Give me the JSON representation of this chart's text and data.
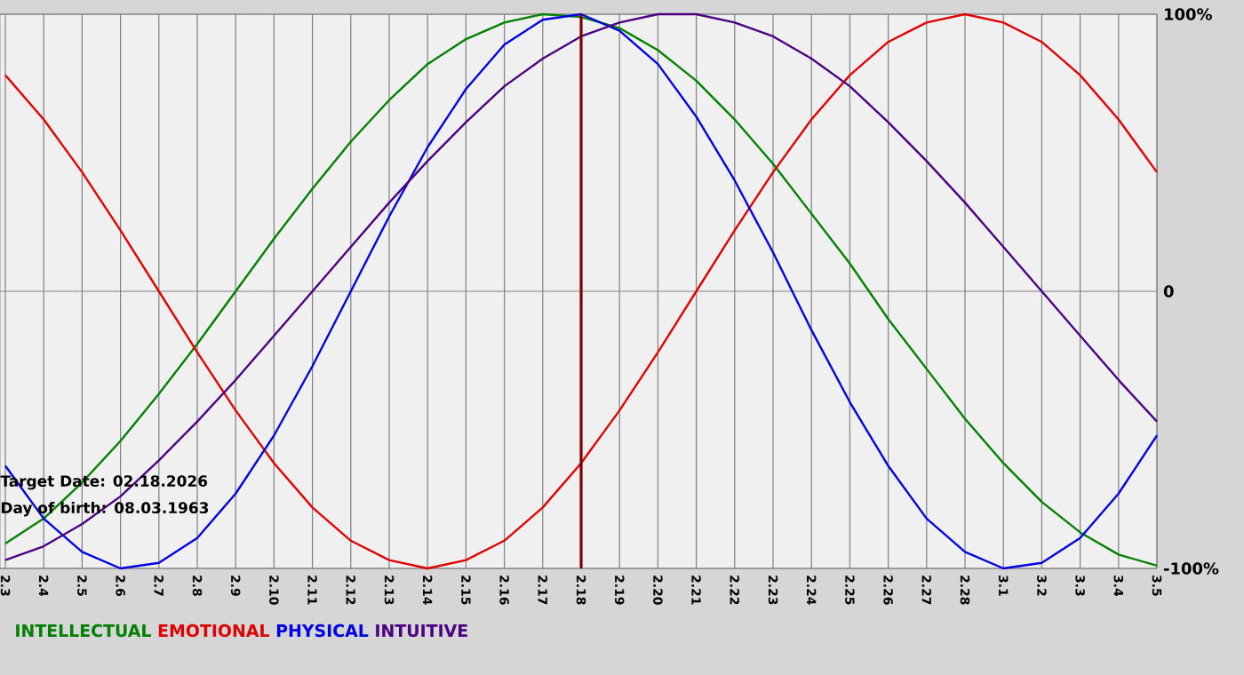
{
  "chart_data": {
    "type": "line",
    "categories": [
      "2.3",
      "2.4",
      "2.5",
      "2.6",
      "2.7",
      "2.8",
      "2.9",
      "2.10",
      "2.11",
      "2.12",
      "2.13",
      "2.14",
      "2.15",
      "2.16",
      "2.17",
      "2.18",
      "2.19",
      "2.20",
      "2.21",
      "2.22",
      "2.23",
      "2.24",
      "2.25",
      "2.26",
      "2.27",
      "2.28",
      "3.1",
      "3.2",
      "3.3",
      "3.4",
      "3.5"
    ],
    "series": [
      {
        "name": "INTELLECTUAL",
        "color": "#008000",
        "values": [
          -0.91,
          -0.82,
          -0.69,
          -0.54,
          -0.37,
          -0.19,
          0,
          0.19,
          0.37,
          0.54,
          0.69,
          0.82,
          0.91,
          0.97,
          1.0,
          0.99,
          0.95,
          0.87,
          0.76,
          0.62,
          0.46,
          0.28,
          0.1,
          -0.1,
          -0.28,
          -0.46,
          -0.62,
          -0.76,
          -0.87,
          -0.95,
          -0.99
        ]
      },
      {
        "name": "EMOTIONAL",
        "color": "#e00000",
        "values": [
          0.78,
          0.62,
          0.43,
          0.22,
          0,
          -0.22,
          -0.43,
          -0.62,
          -0.78,
          -0.9,
          -0.97,
          -1.0,
          -0.97,
          -0.9,
          -0.78,
          -0.62,
          -0.43,
          -0.22,
          0,
          0.22,
          0.43,
          0.62,
          0.78,
          0.9,
          0.97,
          1.0,
          0.97,
          0.9,
          0.78,
          0.62,
          0.43
        ]
      },
      {
        "name": "PHYSICAL",
        "color": "#0000e0",
        "values": [
          -0.63,
          -0.82,
          -0.94,
          -1.0,
          -0.98,
          -0.89,
          -0.73,
          -0.52,
          -0.27,
          0,
          0.27,
          0.52,
          0.73,
          0.89,
          0.98,
          1.0,
          0.94,
          0.82,
          0.63,
          0.4,
          0.14,
          -0.14,
          -0.4,
          -0.63,
          -0.82,
          -0.94,
          -1.0,
          -0.98,
          -0.89,
          -0.73,
          -0.52
        ]
      },
      {
        "name": "INTUITIVE",
        "color": "#4b0082",
        "values": [
          -0.97,
          -0.92,
          -0.84,
          -0.74,
          -0.61,
          -0.47,
          -0.32,
          -0.16,
          0,
          0.16,
          0.32,
          0.47,
          0.61,
          0.74,
          0.84,
          0.92,
          0.97,
          1.0,
          1.0,
          0.97,
          0.92,
          0.84,
          0.74,
          0.61,
          0.47,
          0.32,
          0.16,
          0,
          -0.16,
          -0.32,
          -0.47
        ]
      }
    ],
    "ylim": [
      -1,
      1
    ],
    "yticks": [
      {
        "value": -1,
        "label": "-100%"
      },
      0,
      {
        "value": 1,
        "label": "100%"
      }
    ],
    "grid": true,
    "legend": "bottom",
    "ref_lines": [
      {
        "axis": "x",
        "value": "2.18",
        "color": "#800000"
      }
    ],
    "annotations": [
      "Target Date: 02.18.2026",
      "Day of birth: 08.03.1963"
    ]
  }
}
